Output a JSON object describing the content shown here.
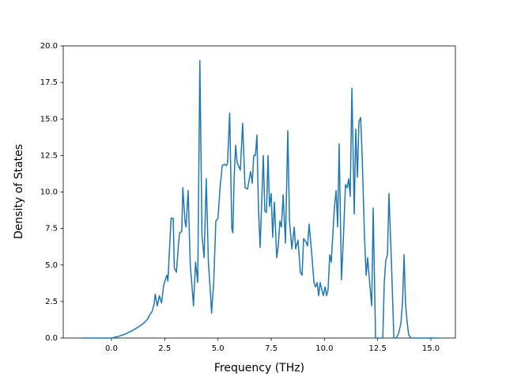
{
  "chart_data": {
    "type": "line",
    "xlabel": "Frequency (THz)",
    "ylabel": "Density of States",
    "xlim": [
      -2.265,
      16.15
    ],
    "ylim": [
      0,
      20
    ],
    "xticks": [
      {
        "value": 0,
        "label": "0.0"
      },
      {
        "value": 2.5,
        "label": "2.5"
      },
      {
        "value": 5,
        "label": "5.0"
      },
      {
        "value": 7.5,
        "label": "7.5"
      },
      {
        "value": 10,
        "label": "10.0"
      },
      {
        "value": 12.5,
        "label": "12.5"
      },
      {
        "value": 15,
        "label": "15.0"
      }
    ],
    "yticks": [
      {
        "value": 0,
        "label": "0.0"
      },
      {
        "value": 2.5,
        "label": "2.5"
      },
      {
        "value": 5,
        "label": "5.0"
      },
      {
        "value": 7.5,
        "label": "7.5"
      },
      {
        "value": 10,
        "label": "10.0"
      },
      {
        "value": 12.5,
        "label": "12.5"
      },
      {
        "value": 15,
        "label": "15.0"
      },
      {
        "value": 17.5,
        "label": "17.5"
      },
      {
        "value": 20,
        "label": "20.0"
      }
    ],
    "grid": false,
    "x": [
      -1.4,
      -1.0,
      -0.5,
      0,
      0.3,
      0.6,
      0.9,
      1.2,
      1.5,
      1.7,
      1.8,
      1.9,
      2.0,
      2.05,
      2.15,
      2.25,
      2.35,
      2.45,
      2.55,
      2.6,
      2.65,
      2.75,
      2.8,
      2.9,
      2.95,
      3.05,
      3.15,
      3.2,
      3.3,
      3.35,
      3.45,
      3.5,
      3.6,
      3.7,
      3.8,
      3.85,
      3.95,
      4.05,
      4.15,
      4.25,
      4.35,
      4.45,
      4.55,
      4.65,
      4.7,
      4.8,
      4.9,
      5.0,
      5.1,
      5.2,
      5.3,
      5.4,
      5.45,
      5.55,
      5.65,
      5.7,
      5.76,
      5.83,
      5.9,
      6.05,
      6.16,
      6.27,
      6.39,
      6.53,
      6.61,
      6.68,
      6.76,
      6.83,
      6.9,
      6.98,
      7.13,
      7.2,
      7.28,
      7.35,
      7.42,
      7.5,
      7.57,
      7.65,
      7.76,
      7.83,
      7.91,
      7.98,
      8.06,
      8.17,
      8.28,
      8.36,
      8.47,
      8.58,
      8.65,
      8.76,
      8.87,
      8.95,
      9.02,
      9.13,
      9.21,
      9.28,
      9.39,
      9.51,
      9.58,
      9.66,
      9.73,
      9.8,
      9.88,
      9.95,
      10.03,
      10.1,
      10.17,
      10.25,
      10.32,
      10.47,
      10.55,
      10.62,
      10.69,
      10.8,
      10.88,
      10.99,
      11.07,
      11.14,
      11.21,
      11.29,
      11.4,
      11.47,
      11.55,
      11.62,
      11.7,
      11.77,
      11.88,
      11.96,
      12.03,
      12.14,
      12.22,
      12.29,
      12.4,
      12.59,
      12.74,
      12.81,
      12.88,
      12.96,
      13.03,
      13.15,
      13.26,
      13.37,
      13.48,
      13.59,
      13.67,
      13.74,
      13.81,
      13.89,
      13.96,
      14.07,
      15.0,
      15.3
    ],
    "series": [
      {
        "color": "#1f77b4",
        "values": [
          0,
          0,
          0,
          0,
          0.1,
          0.25,
          0.45,
          0.7,
          1.0,
          1.3,
          1.6,
          1.8,
          2.3,
          3.0,
          2.2,
          2.9,
          2.4,
          3.6,
          4.1,
          4.3,
          3.9,
          6.8,
          8.2,
          8.2,
          4.8,
          4.5,
          6.5,
          7.2,
          7.3,
          10.3,
          8.0,
          7.6,
          10.1,
          5.0,
          3.2,
          2.2,
          5.2,
          3.8,
          19.0,
          7.0,
          5.5,
          10.9,
          5.2,
          3.0,
          1.7,
          3.8,
          8.0,
          8.2,
          10.3,
          11.8,
          11.9,
          11.8,
          12.0,
          15.4,
          7.5,
          7.2,
          11.0,
          13.2,
          12.0,
          11.5,
          14.7,
          10.3,
          10.2,
          11.4,
          10.6,
          12.5,
          12.5,
          13.9,
          9.0,
          6.2,
          12.5,
          8.7,
          8.6,
          12.5,
          9.0,
          9.9,
          6.9,
          9.3,
          5.5,
          6.3,
          8.0,
          7.6,
          9.8,
          6.5,
          14.2,
          8.0,
          6.1,
          7.6,
          6.1,
          6.7,
          4.5,
          4.3,
          6.8,
          6.6,
          6.3,
          7.8,
          6.0,
          3.8,
          3.5,
          3.8,
          2.9,
          3.8,
          3.3,
          2.9,
          3.5,
          2.9,
          3.3,
          5.7,
          5.2,
          9.0,
          10.1,
          7.6,
          13.3,
          4.0,
          6.5,
          10.5,
          10.3,
          10.9,
          9.7,
          17.1,
          8.5,
          14.3,
          11.0,
          14.8,
          15.1,
          12.5,
          7.0,
          4.3,
          5.5,
          3.5,
          2.2,
          8.9,
          0,
          0,
          0,
          3.8,
          5.3,
          5.7,
          9.9,
          5.0,
          0,
          0,
          0.3,
          1.0,
          2.5,
          5.7,
          2.3,
          1.0,
          0.2,
          0,
          0,
          0
        ]
      }
    ]
  }
}
